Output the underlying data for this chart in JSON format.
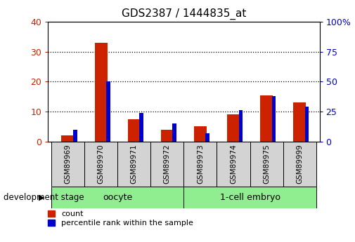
{
  "title": "GDS2387 / 1444835_at",
  "samples": [
    "GSM89969",
    "GSM89970",
    "GSM89971",
    "GSM89972",
    "GSM89973",
    "GSM89974",
    "GSM89975",
    "GSM89999"
  ],
  "count": [
    2,
    33,
    7.5,
    4,
    5,
    9,
    15.5,
    13
  ],
  "percentile": [
    10,
    50,
    24,
    15,
    7,
    26,
    38,
    29
  ],
  "count_color": "#cc2200",
  "percentile_color": "#0000cc",
  "left_ylim": [
    0,
    40
  ],
  "left_yticks": [
    0,
    10,
    20,
    30,
    40
  ],
  "right_ylim": [
    0,
    100
  ],
  "right_yticks": [
    0,
    25,
    50,
    75,
    100
  ],
  "right_yticklabels": [
    "0",
    "25",
    "50",
    "75",
    "100%"
  ],
  "grid_values": [
    10,
    20,
    30
  ],
  "group_label": "development stage",
  "bg_plot": "#ffffff",
  "bg_label": "#d3d3d3",
  "bg_group": "#90ee90",
  "oocyte_label": "oocyte",
  "embryo_label": "1-cell embryo"
}
